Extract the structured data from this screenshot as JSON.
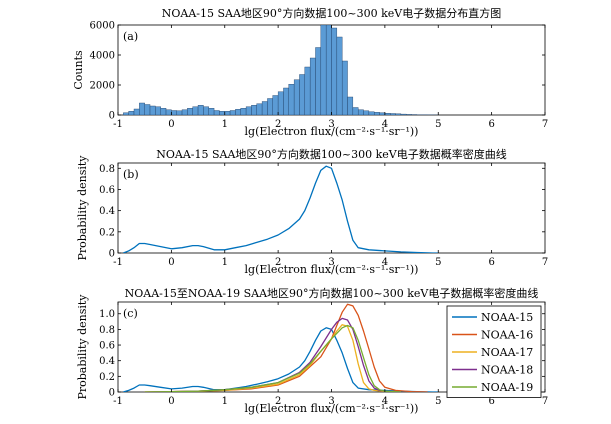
{
  "chart_data": [
    {
      "type": "bar",
      "title": "NOAA-15 SAA地区90°方向数据100~300 keV电子数据分布直方图",
      "panel_label": "(a)",
      "xlabel": "lg(Electron flux/(cm⁻²·s⁻¹·sr⁻¹))",
      "ylabel": "Counts",
      "xlim": [
        -1,
        7
      ],
      "ylim": [
        0,
        6000
      ],
      "xticks": [
        "-1",
        "0",
        "1",
        "2",
        "3",
        "4",
        "5",
        "6",
        "7"
      ],
      "yticks": [
        "0",
        "2000",
        "4000",
        "6000"
      ],
      "bin_width": 0.1,
      "bin_starts": [
        -0.9,
        -0.8,
        -0.7,
        -0.6,
        -0.5,
        -0.4,
        -0.3,
        -0.2,
        -0.1,
        0.0,
        0.1,
        0.2,
        0.3,
        0.4,
        0.5,
        0.6,
        0.7,
        0.8,
        0.9,
        1.0,
        1.1,
        1.2,
        1.3,
        1.4,
        1.5,
        1.6,
        1.7,
        1.8,
        1.9,
        2.0,
        2.1,
        2.2,
        2.3,
        2.4,
        2.5,
        2.6,
        2.7,
        2.8,
        2.9,
        3.0,
        3.1,
        3.2,
        3.3,
        3.4,
        3.5,
        3.6,
        3.7,
        3.8,
        3.9,
        4.0,
        4.1,
        4.2,
        4.3,
        4.4,
        4.5,
        4.6,
        4.7,
        4.8,
        4.9
      ],
      "values": [
        150,
        250,
        400,
        800,
        700,
        600,
        550,
        450,
        350,
        300,
        280,
        350,
        450,
        550,
        650,
        550,
        450,
        300,
        250,
        250,
        300,
        380,
        450,
        550,
        650,
        750,
        900,
        1100,
        1300,
        1550,
        1800,
        2050,
        2350,
        2700,
        3200,
        3800,
        4500,
        6000,
        6000,
        5800,
        5200,
        3600,
        1200,
        500,
        350,
        280,
        220,
        180,
        150,
        120,
        100,
        80,
        60,
        40,
        30,
        20,
        15,
        10,
        5
      ],
      "color": "#5b9bd5"
    },
    {
      "type": "line",
      "title": "NOAA-15 SAA地区90°方向数据100~300 keV电子数据概率密度曲线",
      "panel_label": "(b)",
      "xlabel": "lg(Electron flux/(cm⁻²·s⁻¹·sr⁻¹))",
      "ylabel": "Probability density",
      "xlim": [
        -1,
        7
      ],
      "ylim": [
        0,
        0.85
      ],
      "xticks": [
        "-1",
        "0",
        "1",
        "2",
        "3",
        "4",
        "5",
        "6",
        "7"
      ],
      "yticks": [
        "0",
        "0.2",
        "0.4",
        "0.6",
        "0.8"
      ],
      "series": [
        {
          "name": "NOAA-15",
          "color": "#0072bd",
          "x": [
            -0.9,
            -0.8,
            -0.7,
            -0.6,
            -0.5,
            -0.4,
            -0.2,
            0.0,
            0.2,
            0.4,
            0.5,
            0.6,
            0.8,
            1.0,
            1.2,
            1.4,
            1.6,
            1.8,
            2.0,
            2.2,
            2.4,
            2.5,
            2.6,
            2.7,
            2.8,
            2.9,
            3.0,
            3.1,
            3.2,
            3.3,
            3.4,
            3.5,
            3.7,
            4.0,
            4.3,
            4.6,
            4.9,
            5.0
          ],
          "y": [
            0.0,
            0.02,
            0.05,
            0.09,
            0.09,
            0.08,
            0.06,
            0.04,
            0.05,
            0.07,
            0.07,
            0.06,
            0.03,
            0.03,
            0.05,
            0.07,
            0.1,
            0.13,
            0.17,
            0.23,
            0.32,
            0.4,
            0.52,
            0.66,
            0.78,
            0.82,
            0.8,
            0.66,
            0.5,
            0.3,
            0.12,
            0.05,
            0.03,
            0.02,
            0.01,
            0.005,
            0.0,
            0.0
          ]
        }
      ]
    },
    {
      "type": "line",
      "title": "NOAA-15至NOAA-19 SAA地区90°方向数据100~300 keV电子数据概率密度曲线",
      "panel_label": "(c)",
      "xlabel": "lg(Electron flux/(cm⁻²·s⁻¹·sr⁻¹))",
      "ylabel": "Probability density",
      "xlim": [
        -1,
        7
      ],
      "ylim": [
        0,
        1.15
      ],
      "xticks": [
        "-1",
        "0",
        "1",
        "2",
        "3",
        "4",
        "5",
        "6",
        "7"
      ],
      "yticks": [
        "0",
        "0.2",
        "0.4",
        "0.6",
        "0.8",
        "1.0"
      ],
      "legend_position": "right",
      "series": [
        {
          "name": "NOAA-15",
          "color": "#0072bd",
          "x": [
            -0.9,
            -0.8,
            -0.7,
            -0.6,
            -0.5,
            -0.4,
            -0.2,
            0.0,
            0.2,
            0.4,
            0.5,
            0.6,
            0.8,
            1.0,
            1.2,
            1.4,
            1.6,
            1.8,
            2.0,
            2.2,
            2.4,
            2.5,
            2.6,
            2.7,
            2.8,
            2.9,
            3.0,
            3.1,
            3.2,
            3.3,
            3.4,
            3.5,
            3.7,
            4.0,
            4.3,
            4.6,
            4.9,
            5.0
          ],
          "y": [
            0.0,
            0.02,
            0.05,
            0.09,
            0.09,
            0.08,
            0.06,
            0.04,
            0.05,
            0.07,
            0.07,
            0.06,
            0.03,
            0.03,
            0.05,
            0.07,
            0.1,
            0.13,
            0.17,
            0.23,
            0.32,
            0.4,
            0.52,
            0.66,
            0.78,
            0.82,
            0.8,
            0.66,
            0.5,
            0.3,
            0.12,
            0.05,
            0.03,
            0.02,
            0.01,
            0.005,
            0.0,
            0.0
          ]
        },
        {
          "name": "NOAA-16",
          "color": "#d95319",
          "x": [
            -0.5,
            0.0,
            0.5,
            1.0,
            1.5,
            2.0,
            2.4,
            2.8,
            3.0,
            3.1,
            3.2,
            3.3,
            3.4,
            3.5,
            3.6,
            3.7,
            3.8,
            3.9,
            4.0,
            4.2,
            4.5,
            4.8
          ],
          "y": [
            0.0,
            0.005,
            0.01,
            0.02,
            0.04,
            0.09,
            0.2,
            0.45,
            0.68,
            0.85,
            1.02,
            1.12,
            1.1,
            0.98,
            0.78,
            0.55,
            0.32,
            0.14,
            0.06,
            0.02,
            0.005,
            0.0
          ]
        },
        {
          "name": "NOAA-17",
          "color": "#edb120",
          "x": [
            -0.5,
            0.0,
            0.5,
            1.0,
            1.5,
            2.0,
            2.4,
            2.6,
            2.8,
            3.0,
            3.1,
            3.2,
            3.3,
            3.4,
            3.5,
            3.6,
            3.7,
            3.8,
            4.0,
            4.3
          ],
          "y": [
            0.0,
            0.005,
            0.01,
            0.02,
            0.05,
            0.1,
            0.22,
            0.34,
            0.52,
            0.68,
            0.78,
            0.86,
            0.84,
            0.66,
            0.36,
            0.12,
            0.04,
            0.02,
            0.005,
            0.0
          ]
        },
        {
          "name": "NOAA-18",
          "color": "#7e2f8e",
          "x": [
            -0.5,
            0.0,
            0.5,
            1.0,
            1.5,
            2.0,
            2.4,
            2.6,
            2.8,
            3.0,
            3.1,
            3.2,
            3.3,
            3.4,
            3.5,
            3.6,
            3.7,
            3.8,
            3.9,
            4.0,
            4.3
          ],
          "y": [
            0.0,
            0.005,
            0.01,
            0.03,
            0.06,
            0.12,
            0.25,
            0.38,
            0.58,
            0.8,
            0.89,
            0.94,
            0.92,
            0.8,
            0.58,
            0.34,
            0.14,
            0.05,
            0.02,
            0.01,
            0.0
          ]
        },
        {
          "name": "NOAA-19",
          "color": "#77ac30",
          "x": [
            -0.5,
            0.0,
            0.5,
            1.0,
            1.5,
            2.0,
            2.4,
            2.6,
            2.8,
            3.0,
            3.2,
            3.3,
            3.4,
            3.5,
            3.6,
            3.7,
            3.8,
            3.9,
            4.0,
            4.3
          ],
          "y": [
            0.0,
            0.005,
            0.01,
            0.03,
            0.06,
            0.12,
            0.24,
            0.36,
            0.52,
            0.68,
            0.82,
            0.85,
            0.82,
            0.66,
            0.44,
            0.22,
            0.08,
            0.03,
            0.01,
            0.0
          ]
        }
      ]
    }
  ]
}
